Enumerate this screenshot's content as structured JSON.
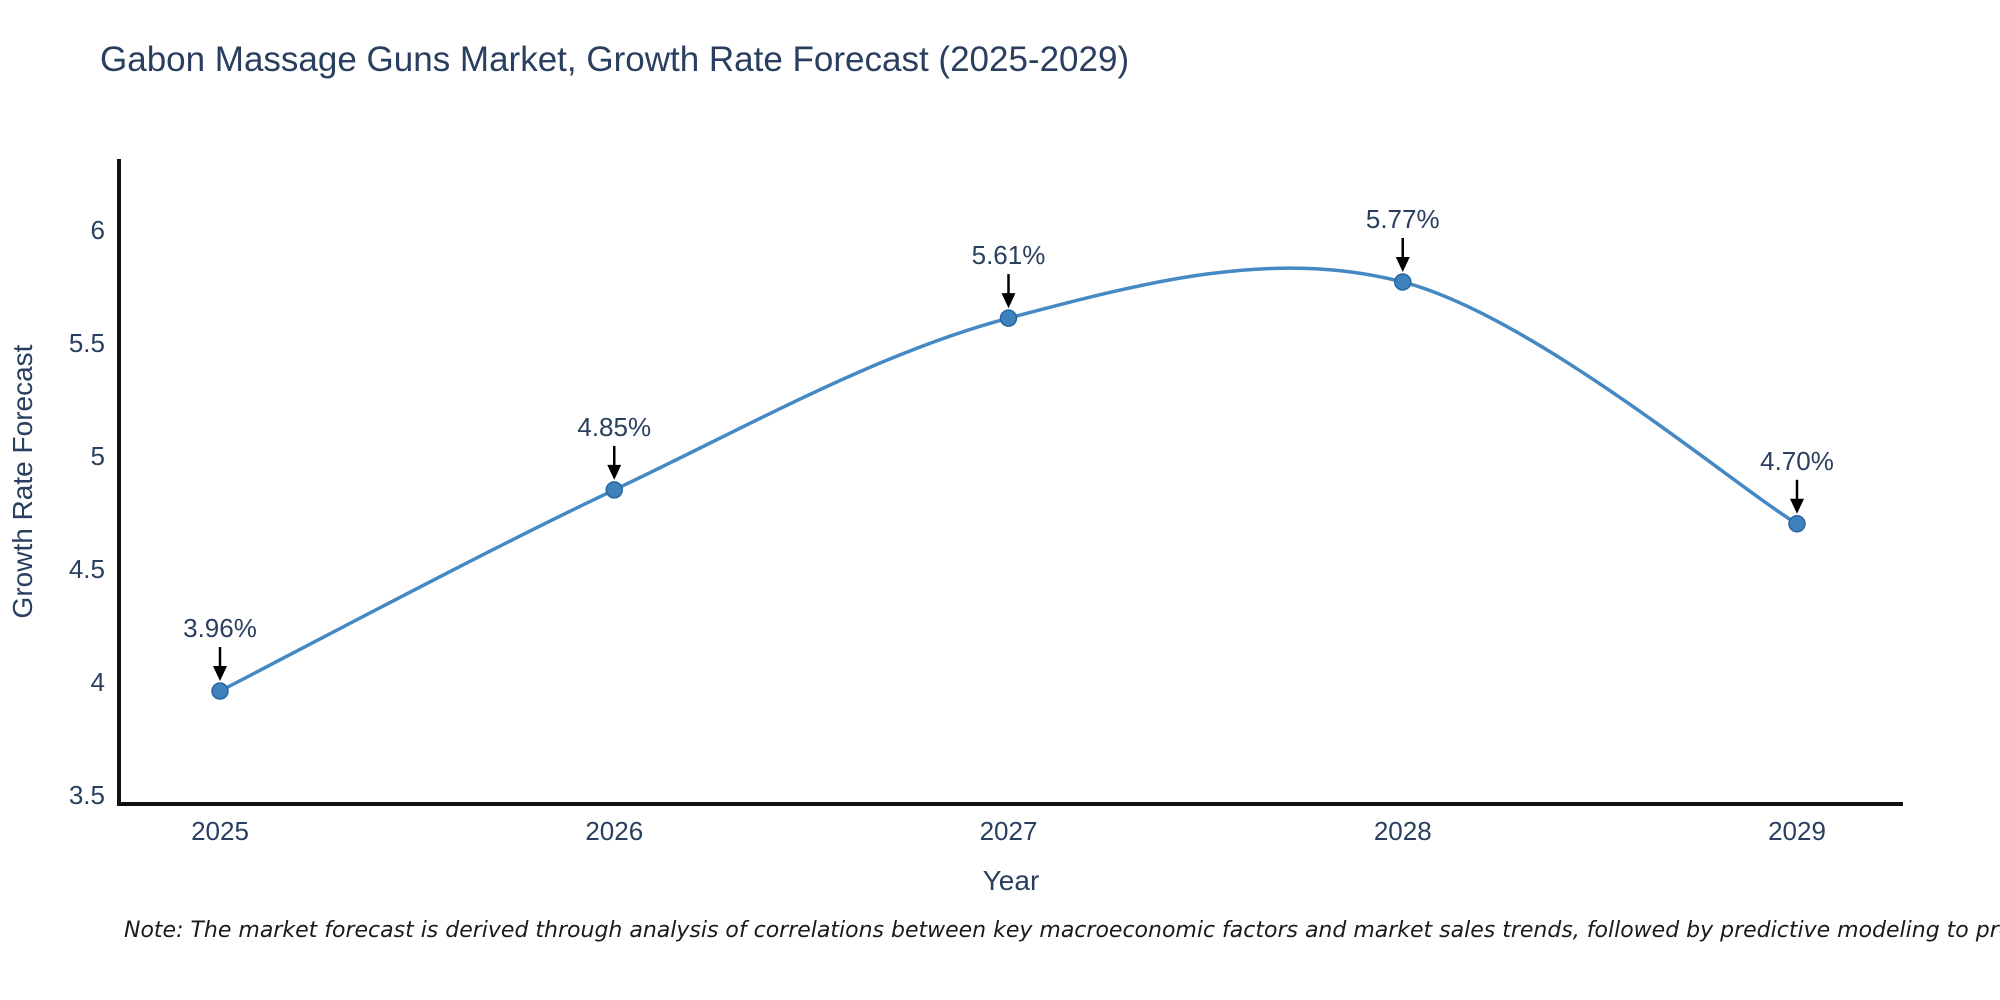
{
  "note": "Note: The market forecast is derived through analysis of correlations between key macroeconomic factors and market sales trends, followed by predictive modeling to project future sales",
  "chart_data": {
    "type": "line",
    "title": "Gabon Massage Guns Market, Growth Rate Forecast (2025-2029)",
    "x": [
      2025,
      2026,
      2027,
      2028,
      2029
    ],
    "values": [
      3.96,
      4.85,
      5.61,
      5.77,
      4.7
    ],
    "point_labels": [
      "3.96%",
      "4.85%",
      "5.61%",
      "5.77%",
      "4.70%"
    ],
    "xtick_labels": [
      "2025",
      "2026",
      "2027",
      "2028",
      "2029"
    ],
    "yticks": [
      3.5,
      4,
      4.5,
      5,
      5.5,
      6
    ],
    "ytick_labels": [
      "3.5",
      "4",
      "4.5",
      "5",
      "5.5",
      "6"
    ],
    "xlabel": "Year",
    "ylabel": "Growth Rate Forecast",
    "ylim": [
      3.5,
      6.0
    ],
    "line_shape": "spline",
    "grid": false,
    "legend": "none",
    "annotation_style": "value label with black down arrow to each point",
    "colors": {
      "line": "#4489c4",
      "marker_fill": "#3d82bd",
      "marker_stroke": "#28659e",
      "axis": "#111111",
      "text": "#2a3f5f",
      "annotation_arrow": "#000000",
      "note_text": "#1a1a1a",
      "background": "#ffffff"
    }
  }
}
